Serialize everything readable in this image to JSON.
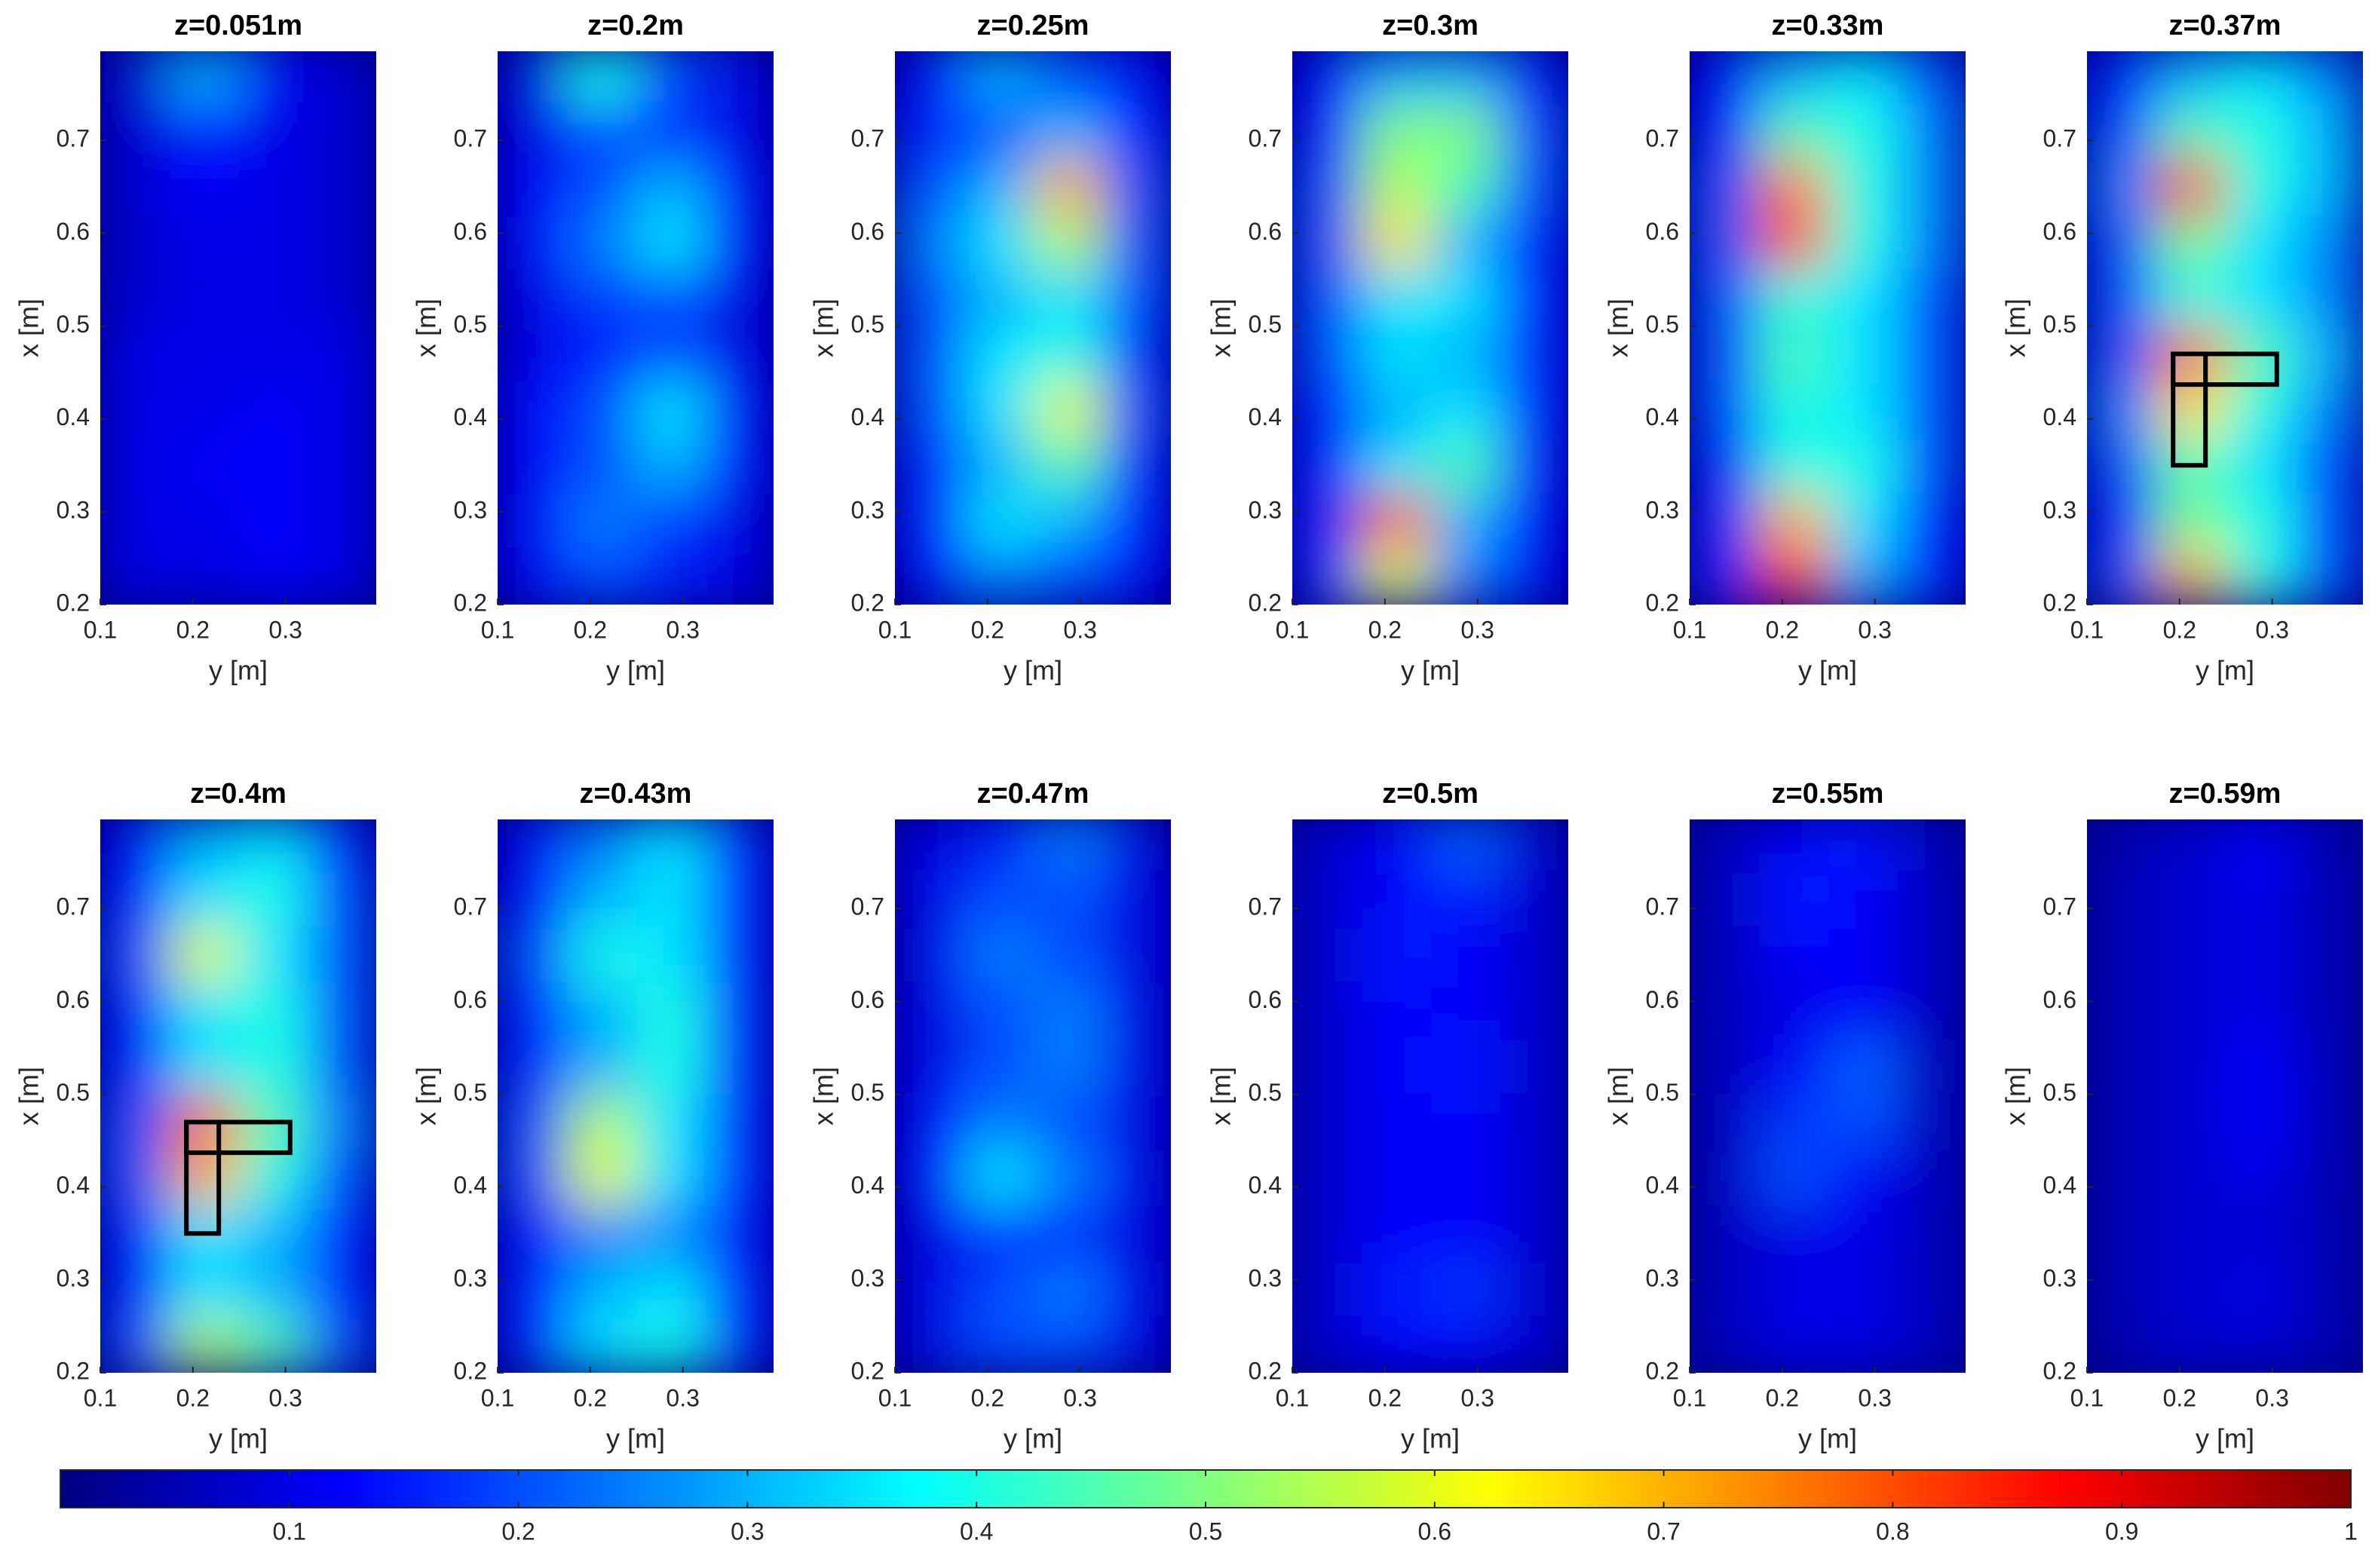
{
  "chart_data": [
    {
      "type": "heatmap",
      "title": "z=0.051m",
      "xlabel": "y [m]",
      "ylabel": "x [m]",
      "xlim": [
        0.1,
        0.398
      ],
      "ylim": [
        0.2,
        0.796
      ],
      "xticks": [
        0.1,
        0.2,
        0.3
      ],
      "yticks": [
        0.2,
        0.3,
        0.4,
        0.5,
        0.6,
        0.7
      ],
      "x": [
        0.1375,
        0.2125,
        0.2875,
        0.3625
      ],
      "y": [
        0.23,
        0.29,
        0.35,
        0.41,
        0.47,
        0.53,
        0.59,
        0.65,
        0.71,
        0.77
      ],
      "values": [
        [
          0.1,
          0.1,
          0.12,
          0.1
        ],
        [
          0.1,
          0.1,
          0.12,
          0.1
        ],
        [
          0.1,
          0.12,
          0.12,
          0.1
        ],
        [
          0.1,
          0.1,
          0.12,
          0.1
        ],
        [
          0.1,
          0.1,
          0.1,
          0.1
        ],
        [
          0.08,
          0.1,
          0.1,
          0.08
        ],
        [
          0.08,
          0.1,
          0.1,
          0.08
        ],
        [
          0.08,
          0.12,
          0.1,
          0.08
        ],
        [
          0.08,
          0.15,
          0.1,
          0.08
        ],
        [
          0.08,
          0.3,
          0.12,
          0.08
        ]
      ]
    },
    {
      "type": "heatmap",
      "title": "z=0.2m",
      "xlabel": "y [m]",
      "ylabel": "x [m]",
      "xlim": [
        0.1,
        0.398
      ],
      "ylim": [
        0.2,
        0.796
      ],
      "xticks": [
        0.1,
        0.2,
        0.3
      ],
      "yticks": [
        0.2,
        0.3,
        0.4,
        0.5,
        0.6,
        0.7
      ],
      "x": [
        0.1375,
        0.2125,
        0.2875,
        0.3625
      ],
      "y": [
        0.23,
        0.29,
        0.35,
        0.41,
        0.47,
        0.53,
        0.59,
        0.65,
        0.71,
        0.77
      ],
      "values": [
        [
          0.12,
          0.2,
          0.15,
          0.1
        ],
        [
          0.12,
          0.25,
          0.18,
          0.1
        ],
        [
          0.12,
          0.2,
          0.3,
          0.12
        ],
        [
          0.12,
          0.2,
          0.35,
          0.12
        ],
        [
          0.1,
          0.15,
          0.2,
          0.1
        ],
        [
          0.1,
          0.18,
          0.2,
          0.1
        ],
        [
          0.12,
          0.25,
          0.35,
          0.12
        ],
        [
          0.12,
          0.2,
          0.3,
          0.12
        ],
        [
          0.1,
          0.2,
          0.15,
          0.1
        ],
        [
          0.1,
          0.4,
          0.2,
          0.1
        ]
      ]
    },
    {
      "type": "heatmap",
      "title": "z=0.25m",
      "xlabel": "y [m]",
      "ylabel": "x [m]",
      "xlim": [
        0.1,
        0.398
      ],
      "ylim": [
        0.2,
        0.796
      ],
      "xticks": [
        0.1,
        0.2,
        0.3
      ],
      "yticks": [
        0.2,
        0.3,
        0.4,
        0.5,
        0.6,
        0.7
      ],
      "x": [
        0.1375,
        0.2125,
        0.2875,
        0.3625
      ],
      "y": [
        0.23,
        0.29,
        0.35,
        0.41,
        0.47,
        0.53,
        0.59,
        0.65,
        0.71,
        0.77
      ],
      "values": [
        [
          0.12,
          0.25,
          0.2,
          0.12
        ],
        [
          0.15,
          0.35,
          0.3,
          0.15
        ],
        [
          0.15,
          0.3,
          0.45,
          0.15
        ],
        [
          0.2,
          0.35,
          0.6,
          0.2
        ],
        [
          0.2,
          0.35,
          0.4,
          0.15
        ],
        [
          0.2,
          0.3,
          0.35,
          0.2
        ],
        [
          0.25,
          0.35,
          0.55,
          0.2
        ],
        [
          0.2,
          0.3,
          0.7,
          0.2
        ],
        [
          0.15,
          0.2,
          0.3,
          0.15
        ],
        [
          0.12,
          0.3,
          0.2,
          0.12
        ]
      ]
    },
    {
      "type": "heatmap",
      "title": "z=0.3m",
      "xlabel": "y [m]",
      "ylabel": "x [m]",
      "xlim": [
        0.1,
        0.398
      ],
      "ylim": [
        0.2,
        0.796
      ],
      "xticks": [
        0.1,
        0.2,
        0.3
      ],
      "yticks": [
        0.2,
        0.3,
        0.4,
        0.5,
        0.6,
        0.7
      ],
      "x": [
        0.1375,
        0.2125,
        0.2875,
        0.3625
      ],
      "y": [
        0.23,
        0.29,
        0.35,
        0.41,
        0.47,
        0.53,
        0.59,
        0.65,
        0.71,
        0.77
      ],
      "values": [
        [
          0.15,
          0.6,
          0.25,
          0.12
        ],
        [
          0.15,
          0.8,
          0.3,
          0.12
        ],
        [
          0.15,
          0.35,
          0.45,
          0.15
        ],
        [
          0.15,
          0.3,
          0.35,
          0.15
        ],
        [
          0.2,
          0.35,
          0.3,
          0.15
        ],
        [
          0.2,
          0.35,
          0.35,
          0.15
        ],
        [
          0.2,
          0.65,
          0.3,
          0.15
        ],
        [
          0.2,
          0.55,
          0.45,
          0.2
        ],
        [
          0.15,
          0.5,
          0.5,
          0.2
        ],
        [
          0.12,
          0.3,
          0.3,
          0.12
        ]
      ]
    },
    {
      "type": "heatmap",
      "title": "z=0.33m",
      "xlabel": "y [m]",
      "ylabel": "x [m]",
      "xlim": [
        0.1,
        0.398
      ],
      "ylim": [
        0.2,
        0.796
      ],
      "xticks": [
        0.1,
        0.2,
        0.3
      ],
      "yticks": [
        0.2,
        0.3,
        0.4,
        0.5,
        0.6,
        0.7
      ],
      "x": [
        0.1375,
        0.2125,
        0.2875,
        0.3625
      ],
      "y": [
        0.23,
        0.29,
        0.35,
        0.41,
        0.47,
        0.53,
        0.59,
        0.65,
        0.71,
        0.77
      ],
      "values": [
        [
          0.15,
          0.85,
          0.3,
          0.15
        ],
        [
          0.15,
          0.7,
          0.35,
          0.15
        ],
        [
          0.15,
          0.4,
          0.4,
          0.2
        ],
        [
          0.2,
          0.4,
          0.35,
          0.2
        ],
        [
          0.2,
          0.45,
          0.35,
          0.2
        ],
        [
          0.2,
          0.4,
          0.35,
          0.2
        ],
        [
          0.2,
          0.8,
          0.4,
          0.25
        ],
        [
          0.2,
          0.75,
          0.4,
          0.25
        ],
        [
          0.15,
          0.45,
          0.4,
          0.25
        ],
        [
          0.12,
          0.3,
          0.35,
          0.2
        ]
      ]
    },
    {
      "type": "heatmap",
      "title": "z=0.37m",
      "xlabel": "y [m]",
      "ylabel": "x [m]",
      "xlim": [
        0.1,
        0.398
      ],
      "ylim": [
        0.2,
        0.796
      ],
      "xticks": [
        0.1,
        0.2,
        0.3
      ],
      "yticks": [
        0.2,
        0.3,
        0.4,
        0.5,
        0.6,
        0.7
      ],
      "x": [
        0.1375,
        0.2125,
        0.2875,
        0.3625
      ],
      "y": [
        0.23,
        0.29,
        0.35,
        0.41,
        0.47,
        0.53,
        0.59,
        0.65,
        0.71,
        0.77
      ],
      "values": [
        [
          0.2,
          0.7,
          0.4,
          0.2
        ],
        [
          0.15,
          0.5,
          0.4,
          0.2
        ],
        [
          0.2,
          0.45,
          0.35,
          0.2
        ],
        [
          0.25,
          0.65,
          0.4,
          0.25
        ],
        [
          0.2,
          0.8,
          0.45,
          0.3
        ],
        [
          0.2,
          0.4,
          0.35,
          0.25
        ],
        [
          0.2,
          0.5,
          0.35,
          0.25
        ],
        [
          0.25,
          0.85,
          0.4,
          0.3
        ],
        [
          0.2,
          0.45,
          0.4,
          0.3
        ],
        [
          0.15,
          0.3,
          0.35,
          0.25
        ]
      ],
      "outlines": [
        {
          "x": [
            0.193,
            0.228
          ],
          "y": [
            0.35,
            0.47
          ]
        },
        {
          "x": [
            0.193,
            0.305
          ],
          "y": [
            0.437,
            0.47
          ]
        }
      ]
    },
    {
      "type": "heatmap",
      "title": "z=0.4m",
      "xlabel": "y [m]",
      "ylabel": "x [m]",
      "xlim": [
        0.1,
        0.398
      ],
      "ylim": [
        0.2,
        0.796
      ],
      "xticks": [
        0.1,
        0.2,
        0.3
      ],
      "yticks": [
        0.2,
        0.3,
        0.4,
        0.5,
        0.6,
        0.7
      ],
      "x": [
        0.1375,
        0.2125,
        0.2875,
        0.3625
      ],
      "y": [
        0.23,
        0.29,
        0.35,
        0.41,
        0.47,
        0.53,
        0.59,
        0.65,
        0.71,
        0.77
      ],
      "values": [
        [
          0.2,
          0.55,
          0.45,
          0.2
        ],
        [
          0.15,
          0.35,
          0.3,
          0.15
        ],
        [
          0.15,
          0.35,
          0.3,
          0.15
        ],
        [
          0.2,
          0.7,
          0.4,
          0.2
        ],
        [
          0.2,
          0.8,
          0.45,
          0.25
        ],
        [
          0.15,
          0.35,
          0.4,
          0.2
        ],
        [
          0.15,
          0.35,
          0.4,
          0.2
        ],
        [
          0.2,
          0.6,
          0.35,
          0.2
        ],
        [
          0.15,
          0.35,
          0.4,
          0.2
        ],
        [
          0.12,
          0.3,
          0.35,
          0.15
        ]
      ],
      "outlines": [
        {
          "x": [
            0.193,
            0.228
          ],
          "y": [
            0.35,
            0.47
          ]
        },
        {
          "x": [
            0.193,
            0.305
          ],
          "y": [
            0.437,
            0.47
          ]
        }
      ]
    },
    {
      "type": "heatmap",
      "title": "z=0.43m",
      "xlabel": "y [m]",
      "ylabel": "x [m]",
      "xlim": [
        0.1,
        0.398
      ],
      "ylim": [
        0.2,
        0.796
      ],
      "xticks": [
        0.1,
        0.2,
        0.3
      ],
      "yticks": [
        0.2,
        0.3,
        0.4,
        0.5,
        0.6,
        0.7
      ],
      "x": [
        0.1375,
        0.2125,
        0.2875,
        0.3625
      ],
      "y": [
        0.23,
        0.29,
        0.35,
        0.41,
        0.47,
        0.53,
        0.59,
        0.65,
        0.71,
        0.77
      ],
      "values": [
        [
          0.15,
          0.35,
          0.4,
          0.15
        ],
        [
          0.15,
          0.3,
          0.35,
          0.15
        ],
        [
          0.12,
          0.25,
          0.25,
          0.12
        ],
        [
          0.2,
          0.6,
          0.35,
          0.15
        ],
        [
          0.2,
          0.55,
          0.35,
          0.15
        ],
        [
          0.15,
          0.3,
          0.4,
          0.15
        ],
        [
          0.15,
          0.3,
          0.4,
          0.15
        ],
        [
          0.2,
          0.4,
          0.35,
          0.15
        ],
        [
          0.12,
          0.3,
          0.35,
          0.15
        ],
        [
          0.12,
          0.25,
          0.35,
          0.15
        ]
      ]
    },
    {
      "type": "heatmap",
      "title": "z=0.47m",
      "xlabel": "y [m]",
      "ylabel": "x [m]",
      "xlim": [
        0.1,
        0.398
      ],
      "ylim": [
        0.2,
        0.796
      ],
      "xticks": [
        0.1,
        0.2,
        0.3
      ],
      "yticks": [
        0.2,
        0.3,
        0.4,
        0.5,
        0.6,
        0.7
      ],
      "x": [
        0.1375,
        0.2125,
        0.2875,
        0.3625
      ],
      "y": [
        0.23,
        0.29,
        0.35,
        0.41,
        0.47,
        0.53,
        0.59,
        0.65,
        0.71,
        0.77
      ],
      "values": [
        [
          0.1,
          0.2,
          0.2,
          0.1
        ],
        [
          0.1,
          0.2,
          0.25,
          0.1
        ],
        [
          0.1,
          0.15,
          0.15,
          0.1
        ],
        [
          0.12,
          0.35,
          0.25,
          0.1
        ],
        [
          0.12,
          0.25,
          0.2,
          0.1
        ],
        [
          0.1,
          0.2,
          0.25,
          0.1
        ],
        [
          0.1,
          0.2,
          0.25,
          0.1
        ],
        [
          0.1,
          0.25,
          0.2,
          0.1
        ],
        [
          0.1,
          0.2,
          0.2,
          0.1
        ],
        [
          0.1,
          0.15,
          0.25,
          0.1
        ]
      ]
    },
    {
      "type": "heatmap",
      "title": "z=0.5m",
      "xlabel": "y [m]",
      "ylabel": "x [m]",
      "xlim": [
        0.1,
        0.398
      ],
      "ylim": [
        0.2,
        0.796
      ],
      "xticks": [
        0.1,
        0.2,
        0.3
      ],
      "yticks": [
        0.2,
        0.3,
        0.4,
        0.5,
        0.6,
        0.7
      ],
      "x": [
        0.1375,
        0.2125,
        0.2875,
        0.3625
      ],
      "y": [
        0.23,
        0.29,
        0.35,
        0.41,
        0.47,
        0.53,
        0.59,
        0.65,
        0.71,
        0.77
      ],
      "values": [
        [
          0.08,
          0.12,
          0.12,
          0.08
        ],
        [
          0.08,
          0.15,
          0.18,
          0.08
        ],
        [
          0.08,
          0.12,
          0.12,
          0.08
        ],
        [
          0.08,
          0.12,
          0.12,
          0.08
        ],
        [
          0.08,
          0.12,
          0.12,
          0.08
        ],
        [
          0.08,
          0.12,
          0.15,
          0.08
        ],
        [
          0.08,
          0.12,
          0.12,
          0.08
        ],
        [
          0.08,
          0.15,
          0.12,
          0.08
        ],
        [
          0.08,
          0.12,
          0.15,
          0.08
        ],
        [
          0.08,
          0.12,
          0.22,
          0.08
        ]
      ]
    },
    {
      "type": "heatmap",
      "title": "z=0.55m",
      "xlabel": "y [m]",
      "ylabel": "x [m]",
      "xlim": [
        0.1,
        0.398
      ],
      "ylim": [
        0.2,
        0.796
      ],
      "xticks": [
        0.1,
        0.2,
        0.3
      ],
      "yticks": [
        0.2,
        0.3,
        0.4,
        0.5,
        0.6,
        0.7
      ],
      "x": [
        0.1375,
        0.2125,
        0.2875,
        0.3625
      ],
      "y": [
        0.23,
        0.29,
        0.35,
        0.41,
        0.47,
        0.53,
        0.59,
        0.65,
        0.71,
        0.77
      ],
      "values": [
        [
          0.06,
          0.1,
          0.1,
          0.06
        ],
        [
          0.06,
          0.1,
          0.1,
          0.06
        ],
        [
          0.06,
          0.1,
          0.1,
          0.06
        ],
        [
          0.06,
          0.2,
          0.12,
          0.06
        ],
        [
          0.06,
          0.18,
          0.2,
          0.06
        ],
        [
          0.06,
          0.12,
          0.22,
          0.06
        ],
        [
          0.06,
          0.1,
          0.12,
          0.06
        ],
        [
          0.06,
          0.12,
          0.12,
          0.06
        ],
        [
          0.06,
          0.15,
          0.12,
          0.06
        ],
        [
          0.06,
          0.12,
          0.15,
          0.06
        ]
      ]
    },
    {
      "type": "heatmap",
      "title": "z=0.59m",
      "xlabel": "y [m]",
      "ylabel": "x [m]",
      "xlim": [
        0.1,
        0.398
      ],
      "ylim": [
        0.2,
        0.796
      ],
      "xticks": [
        0.1,
        0.2,
        0.3
      ],
      "yticks": [
        0.2,
        0.3,
        0.4,
        0.5,
        0.6,
        0.7
      ],
      "x": [
        0.1375,
        0.2125,
        0.2875,
        0.3625
      ],
      "y": [
        0.23,
        0.29,
        0.35,
        0.41,
        0.47,
        0.53,
        0.59,
        0.65,
        0.71,
        0.77
      ],
      "values": [
        [
          0.05,
          0.08,
          0.08,
          0.05
        ],
        [
          0.05,
          0.08,
          0.1,
          0.05
        ],
        [
          0.05,
          0.08,
          0.08,
          0.05
        ],
        [
          0.05,
          0.08,
          0.1,
          0.05
        ],
        [
          0.05,
          0.08,
          0.12,
          0.05
        ],
        [
          0.05,
          0.08,
          0.12,
          0.05
        ],
        [
          0.05,
          0.08,
          0.1,
          0.05
        ],
        [
          0.05,
          0.08,
          0.1,
          0.05
        ],
        [
          0.05,
          0.08,
          0.1,
          0.05
        ],
        [
          0.05,
          0.08,
          0.12,
          0.05
        ]
      ]
    }
  ],
  "colorbar": {
    "type": "colorbar",
    "colormap": "jet",
    "lim": [
      0,
      1
    ],
    "ticks": [
      0.1,
      0.2,
      0.3,
      0.4,
      0.5,
      0.6,
      0.7,
      0.8,
      0.9,
      1
    ]
  }
}
